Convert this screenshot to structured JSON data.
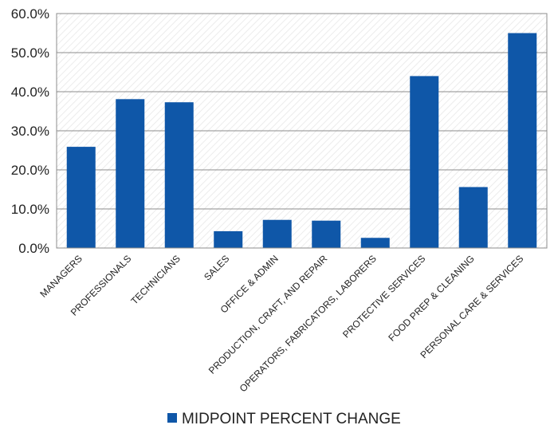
{
  "chart_data": {
    "type": "bar",
    "categories": [
      "MANAGERS",
      "PROFESSIONALS",
      "TECHNICIANS",
      "SALES",
      "OFFICE & ADMIN",
      "PRODUCTION, CRAFT, AND REPAIR",
      "OPERATORS, FABRICATORS, LABORERS",
      "PROTECTIVE SERVICES",
      "FOOD PREP & CLEANING",
      "PERSONAL CARE & SERVICES"
    ],
    "series": [
      {
        "name": "MIDPOINT PERCENT CHANGE",
        "values": [
          25.9,
          38.1,
          37.3,
          4.3,
          7.2,
          7.0,
          2.6,
          44.0,
          15.6,
          55.0
        ]
      }
    ],
    "ylim": [
      0,
      60
    ],
    "yticks": [
      "0.0%",
      "10.0%",
      "20.0%",
      "30.0%",
      "40.0%",
      "50.0%",
      "60.0%"
    ],
    "grid": true,
    "legend_position": "bottom",
    "colors": {
      "bar": "#0f57a8",
      "grid": "#8c8c8c",
      "background_hatch": "#e6e6e6"
    }
  }
}
